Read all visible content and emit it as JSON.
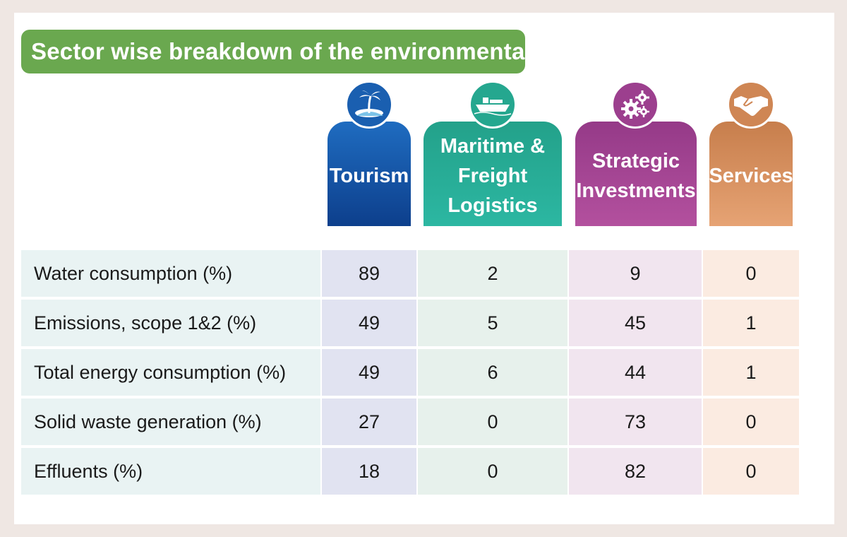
{
  "title": "Sector wise breakdown of the environmental footprint",
  "colors": {
    "title_green": "#6aa84f",
    "tourism": "#0d3f8c",
    "maritime": "#2cb7a2",
    "strategic": "#b3509e",
    "services": "#e6a374"
  },
  "headers": [
    {
      "label": "Tourism",
      "icon": "palm-island-icon"
    },
    {
      "label": "Maritime &\nFreight Logistics",
      "icon": "cargo-ship-icon"
    },
    {
      "label": "Strategic\nInvestments",
      "icon": "gears-icon"
    },
    {
      "label": "Services",
      "icon": "handshake-icon"
    }
  ],
  "chart_data": {
    "type": "table",
    "title": "Sector wise breakdown of the environmental footprint",
    "columns": [
      "Tourism",
      "Maritime & Freight Logistics",
      "Strategic Investments",
      "Services"
    ],
    "rows": [
      {
        "label": "Water consumption (%)",
        "values": [
          "89",
          "2",
          "9",
          "0"
        ]
      },
      {
        "label": "Emissions, scope 1&2 (%)",
        "values": [
          "49",
          "5",
          "45",
          "1"
        ]
      },
      {
        "label": "Total energy consumption (%)",
        "values": [
          "49",
          "6",
          "44",
          "1"
        ]
      },
      {
        "label": "Solid waste generation (%)",
        "values": [
          "27",
          "0",
          "73",
          "0"
        ]
      },
      {
        "label": "Effluents (%)",
        "values": [
          "18",
          "0",
          "82",
          "0"
        ]
      }
    ]
  }
}
